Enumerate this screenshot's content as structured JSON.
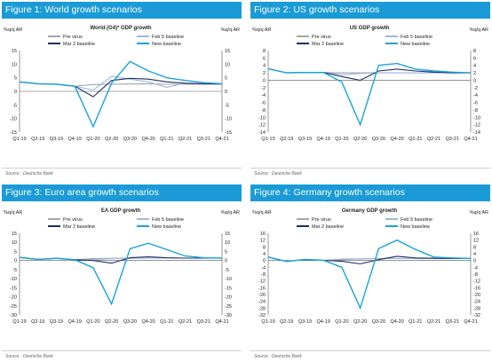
{
  "colors": {
    "header_bg": "#1a9bd7",
    "pre_virus": "#a6a6a6",
    "feb5": "#9fb8dd",
    "mar2": "#1f2d66",
    "new": "#1aa3dc"
  },
  "charts": [
    {
      "header": "Figure 1: World growth scenarios",
      "source": "Source : Deutsche Bank",
      "chart_data": {
        "type": "line",
        "title": "World (G4)* GDP growth",
        "ylabel_left": "%q/q AR",
        "ylabel_right": "%q/q AR",
        "ylim": [
          -15,
          15
        ],
        "yticks": [
          -15,
          -10,
          -5,
          0,
          5,
          10,
          15
        ],
        "categories": [
          "Q1-19",
          "Q2-19",
          "Q3-19",
          "Q4-19",
          "Q1-20",
          "Q2-20",
          "Q3-20",
          "Q4-20",
          "Q1-21",
          "Q2-21",
          "Q3-21",
          "Q4-21"
        ],
        "series": [
          {
            "name": "Pre virus",
            "color_key": "pre_virus",
            "values": [
              3.5,
              2.8,
              2.6,
              1.9,
              2.5,
              2.6,
              2.7,
              2.8,
              2.6,
              2.6,
              2.6,
              2.6
            ]
          },
          {
            "name": "Feb 5 baseline",
            "color_key": "feb5",
            "values": [
              3.5,
              2.8,
              2.6,
              1.9,
              0.5,
              5.5,
              4.5,
              3.5,
              1.5,
              3.0,
              2.8,
              2.7
            ]
          },
          {
            "name": "Mar 2 baseline",
            "color_key": "mar2",
            "values": [
              3.5,
              2.8,
              2.6,
              1.9,
              -2.0,
              4.0,
              4.8,
              4.5,
              3.5,
              3.0,
              2.8,
              2.7
            ]
          },
          {
            "name": "New baseline",
            "color_key": "new",
            "values": [
              3.5,
              2.8,
              2.6,
              1.9,
              -13.0,
              3.0,
              11.0,
              7.5,
              5.0,
              4.0,
              3.2,
              2.8
            ]
          }
        ],
        "legend": [
          {
            "name": "Pre virus",
            "color_key": "pre_virus"
          },
          {
            "name": "Feb 5 baseline",
            "color_key": "feb5"
          },
          {
            "name": "Mar 2 baseline",
            "color_key": "mar2"
          },
          {
            "name": "New baseline",
            "color_key": "new"
          }
        ]
      }
    },
    {
      "header": "Figure 2: US growth scenarios",
      "source": "Source : Deutsche Bank",
      "chart_data": {
        "type": "line",
        "title": "US GDP growth",
        "ylabel_left": "%q/q AR",
        "ylabel_right": "%q/q AR",
        "ylim": [
          -14,
          8
        ],
        "yticks": [
          -14,
          -12,
          -10,
          -8,
          -6,
          -4,
          -2,
          0,
          2,
          4,
          6,
          8
        ],
        "categories": [
          "Q1-19",
          "Q2-19",
          "Q3-19",
          "Q4-19",
          "Q1-20",
          "Q2-20",
          "Q3-20",
          "Q4-20",
          "Q1-21",
          "Q2-21",
          "Q3-21",
          "Q4-21"
        ],
        "series": [
          {
            "name": "Pre virus",
            "color_key": "pre_virus",
            "values": [
              3.1,
              2.0,
              2.1,
              2.1,
              2.0,
              2.0,
              2.0,
              2.0,
              2.0,
              2.0,
              2.0,
              2.0
            ]
          },
          {
            "name": "Feb 5 baseline",
            "color_key": "feb5",
            "values": [
              3.1,
              2.0,
              2.1,
              2.1,
              1.5,
              1.8,
              2.0,
              2.0,
              2.0,
              2.0,
              2.0,
              2.0
            ]
          },
          {
            "name": "Mar 2 baseline",
            "color_key": "mar2",
            "values": [
              3.1,
              2.0,
              2.1,
              2.1,
              1.0,
              0.0,
              2.5,
              3.0,
              2.5,
              2.2,
              2.0,
              2.0
            ]
          },
          {
            "name": "New baseline",
            "color_key": "new",
            "values": [
              3.1,
              2.0,
              2.1,
              2.1,
              -0.5,
              -12.0,
              4.0,
              4.5,
              3.0,
              2.5,
              2.2,
              2.0
            ]
          }
        ],
        "legend": [
          {
            "name": "Pre virus",
            "color_key": "pre_virus"
          },
          {
            "name": "Feb 5 baseline",
            "color_key": "feb5"
          },
          {
            "name": "Mar 2 baseline",
            "color_key": "mar2"
          },
          {
            "name": "New baseline",
            "color_key": "new"
          }
        ]
      }
    },
    {
      "header": "Figure 3: Euro area growth scenarios",
      "source": "Source : Deutsche Bank",
      "chart_data": {
        "type": "line",
        "title": "EA GDP growth",
        "ylabel_left": "%q/q AR",
        "ylabel_right": "%q/q AR",
        "ylim": [
          -30,
          15
        ],
        "yticks": [
          -30,
          -25,
          -20,
          -15,
          -10,
          -5,
          0,
          5,
          10,
          15
        ],
        "categories": [
          "Q1-19",
          "Q2-19",
          "Q3-19",
          "Q4-19",
          "Q1-20",
          "Q2-20",
          "Q3-20",
          "Q4-20",
          "Q1-21",
          "Q2-21",
          "Q3-21",
          "Q4-21"
        ],
        "series": [
          {
            "name": "Pre virus",
            "color_key": "pre_virus",
            "values": [
              1.7,
              0.6,
              1.2,
              0.4,
              1.0,
              1.2,
              1.2,
              1.3,
              1.3,
              1.3,
              1.3,
              1.3
            ]
          },
          {
            "name": "Feb 5 baseline",
            "color_key": "feb5",
            "values": [
              1.7,
              0.6,
              1.2,
              0.4,
              0.5,
              1.0,
              1.3,
              1.3,
              1.3,
              1.3,
              1.3,
              1.3
            ]
          },
          {
            "name": "Mar 2 baseline",
            "color_key": "mar2",
            "values": [
              1.7,
              0.6,
              1.2,
              0.4,
              0.0,
              -1.5,
              1.5,
              2.0,
              1.5,
              1.3,
              1.3,
              1.3
            ]
          },
          {
            "name": "New baseline",
            "color_key": "new",
            "values": [
              1.7,
              0.6,
              1.2,
              0.4,
              -4.0,
              -24.0,
              6.5,
              9.5,
              6.0,
              2.5,
              1.5,
              1.3
            ]
          }
        ],
        "legend": [
          {
            "name": "Pre virus",
            "color_key": "pre_virus"
          },
          {
            "name": "Feb 5 baseline",
            "color_key": "feb5"
          },
          {
            "name": "Mar 2 baseline",
            "color_key": "mar2"
          },
          {
            "name": "New baseline",
            "color_key": "new"
          }
        ]
      }
    },
    {
      "header": "Figure 4: Germany growth scenarios",
      "source": "Source : Deutsche Bank",
      "chart_data": {
        "type": "line",
        "title": "Germany GDP growth",
        "ylabel_left": "%q/q AR",
        "ylabel_right": "%q/q AR",
        "ylim": [
          -32,
          16
        ],
        "yticks": [
          -32,
          -28,
          -24,
          -20,
          -16,
          -12,
          -8,
          -4,
          0,
          4,
          8,
          12,
          16
        ],
        "categories": [
          "Q1-19",
          "Q2-19",
          "Q3-19",
          "Q4-19",
          "Q1-20",
          "Q2-20",
          "Q3-20",
          "Q4-20",
          "Q1-21",
          "Q2-21",
          "Q3-21",
          "Q4-21"
        ],
        "series": [
          {
            "name": "Pre virus",
            "color_key": "pre_virus",
            "values": [
              2.0,
              -0.6,
              0.6,
              0.1,
              0.8,
              1.0,
              1.2,
              1.2,
              1.2,
              1.2,
              1.2,
              1.2
            ]
          },
          {
            "name": "Feb 5 baseline",
            "color_key": "feb5",
            "values": [
              2.0,
              -0.6,
              0.6,
              0.1,
              0.5,
              1.0,
              1.2,
              1.2,
              1.2,
              1.2,
              1.2,
              1.2
            ]
          },
          {
            "name": "Mar 2 baseline",
            "color_key": "mar2",
            "values": [
              2.0,
              -0.6,
              0.6,
              0.1,
              -0.5,
              -2.0,
              0.5,
              2.5,
              1.5,
              1.3,
              1.2,
              1.2
            ]
          },
          {
            "name": "New baseline",
            "color_key": "new",
            "values": [
              2.0,
              -0.6,
              0.6,
              0.1,
              -4.0,
              -28.0,
              7.0,
              12.0,
              6.5,
              2.0,
              1.5,
              1.2
            ]
          }
        ],
        "legend": [
          {
            "name": "Pre virus",
            "color_key": "pre_virus"
          },
          {
            "name": "Feb 5 baseline",
            "color_key": "feb5"
          },
          {
            "name": "Mar 2 baseline",
            "color_key": "mar2"
          },
          {
            "name": "New baseline",
            "color_key": "new"
          }
        ]
      }
    }
  ]
}
